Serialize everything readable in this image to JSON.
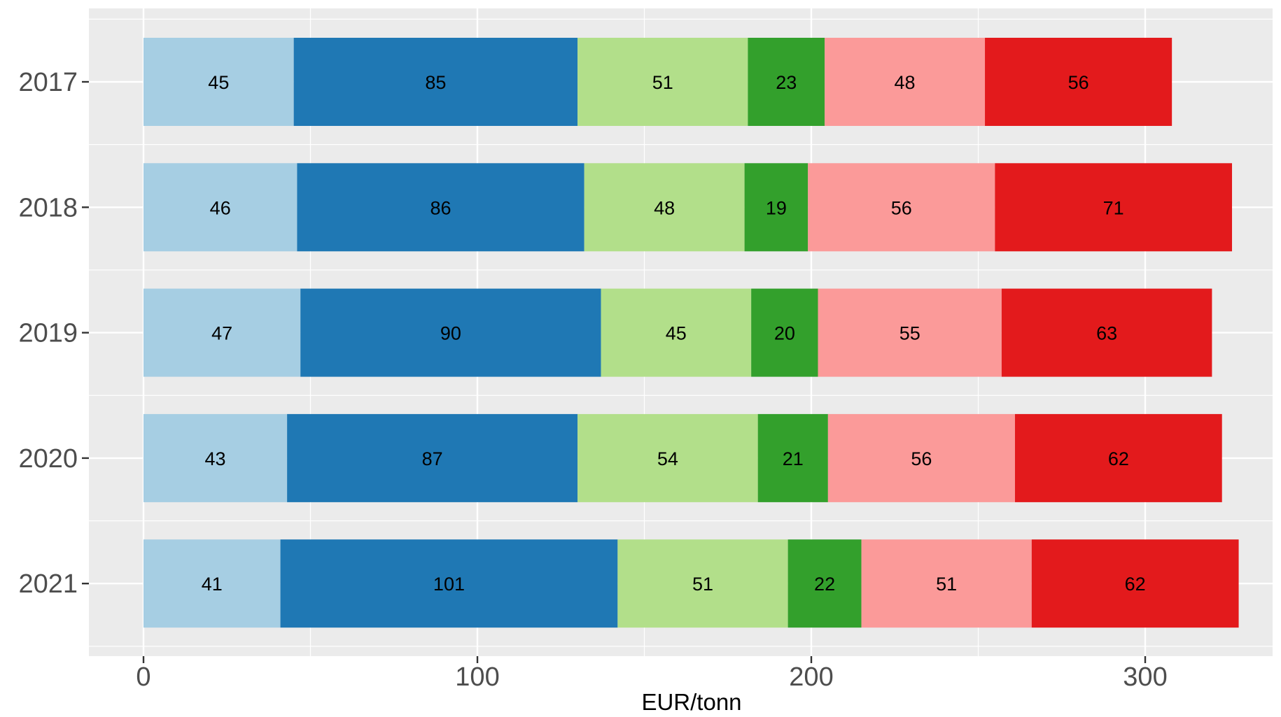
{
  "chart_data": {
    "type": "bar",
    "orientation": "horizontal",
    "stacked": true,
    "title": "",
    "xlabel": "EUR/tonn",
    "ylabel": "",
    "xlim": [
      -16.5,
      340
    ],
    "x_ticks": [
      0,
      100,
      200,
      300
    ],
    "x_tick_labels": [
      "0",
      "100",
      "200",
      "300"
    ],
    "categories": [
      "2017",
      "2018",
      "2019",
      "2020",
      "2021"
    ],
    "grid": true,
    "legend": "none",
    "background": "#ebebeb",
    "series": [
      {
        "color": "#a6cee3",
        "values": [
          45,
          46,
          47,
          43,
          41
        ]
      },
      {
        "color": "#1f78b4",
        "values": [
          85,
          86,
          90,
          87,
          101
        ]
      },
      {
        "color": "#b2df8a",
        "values": [
          51,
          48,
          45,
          54,
          51
        ]
      },
      {
        "color": "#33a02c",
        "values": [
          23,
          19,
          20,
          21,
          22
        ]
      },
      {
        "color": "#fb9a99",
        "values": [
          48,
          56,
          55,
          56,
          51
        ]
      },
      {
        "color": "#e31a1c",
        "values": [
          56,
          71,
          63,
          62,
          62
        ]
      }
    ]
  }
}
